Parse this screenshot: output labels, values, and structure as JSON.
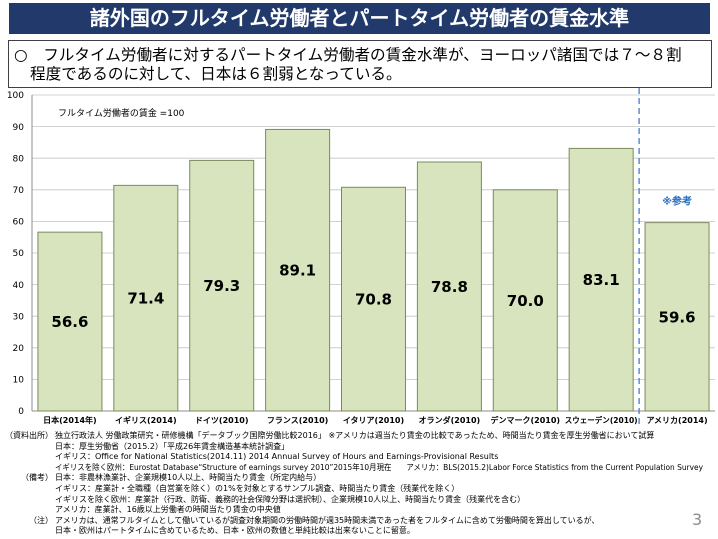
{
  "title": "諸外国のフルタイム労働者とパートタイム労働者の賃金水準",
  "summary": {
    "lines": [
      "○　フルタイム労働者に対するパートタイム労働者の賃金水準が、ヨーロッパ諸国では７～８割",
      "程度であるのに対して、日本は６割弱となっている。"
    ]
  },
  "chart_data": {
    "type": "bar",
    "categories": [
      "日本(2014年)",
      "イギリス(2014)",
      "ドイツ(2010)",
      "フランス(2010)",
      "イタリア(2010)",
      "オランダ(2010)",
      "デンマーク(2010)",
      "スウェーデン(2010)",
      "アメリカ(2014)"
    ],
    "values": [
      56.6,
      71.4,
      79.3,
      89.1,
      70.8,
      78.8,
      70.0,
      83.1,
      59.6
    ],
    "data_labels": [
      "56.6",
      "71.4",
      "79.3",
      "89.1",
      "70.8",
      "78.8",
      "70.0",
      "83.1",
      "59.6"
    ],
    "ylim": [
      0,
      100
    ],
    "yticks": [
      0,
      10,
      20,
      30,
      40,
      50,
      60,
      70,
      80,
      90,
      100
    ],
    "grid": true,
    "annotation": "フルタイム労働者の賃金 =100",
    "reference_note": "※参考",
    "is_reference": [
      false,
      false,
      false,
      false,
      false,
      false,
      false,
      false,
      true
    ]
  },
  "notes": [
    {
      "label": "（資料出所）",
      "lines": [
        "独立行政法人 労働政策研究・研修機構「データブック国際労働比較2016」 ※アメリカは週当たり賃金の比較であったため、時間当たり賃金を厚生労働省において試算",
        "日本：厚生労働省（2015.2）「平成26年賃金構造基本統計調査」",
        "イギリス：Office for National Statistics(2014.11) 2014 Annual Survey of Hours and Earnings-Provisional Results",
        "イギリスを除く欧州：Eurostat Database“Structure of earnings survey 2010”2015年10月現在　　アメリカ：BLS(2015.2)Labor Force Statistics from the Current Population Survey"
      ]
    },
    {
      "label": "（備考）",
      "lines": [
        "日本：非農林漁業計、企業規模10人以上、時間当たり賃金（所定内給与）",
        "イギリス：産業計・全職種（自営業を除く）の1%を対象とするサンプル調査、時間当たり賃金（残業代を除く）",
        "イギリスを除く欧州：産業計（行政、防衛、義務的社会保障分野は選択制）、企業規模10人以上、時間当たり賃金（残業代を含む）",
        "アメリカ：産業計、16歳以上労働者の時間当たり賃金の中央値"
      ]
    },
    {
      "label": "（注）",
      "lines": [
        "アメリカは、通常フルタイムとして働いているが調査対象期間の労働時間が週35時間未満であった者をフルタイムに含めて労働時間を算出しているが、",
        "日本・欧州はパートタイムに含めているため、日本・欧州の数値と単純比較は出来ないことに留意。"
      ]
    }
  ],
  "page_number": "3",
  "colors": {
    "title_bar": "#213a6b",
    "title_text": "#ffffff",
    "bar_fill": "#d7e4bd",
    "bar_stroke": "#7b8a5c",
    "reference_line": "#4a7bd0",
    "reference_text": "#2a6ebd"
  }
}
